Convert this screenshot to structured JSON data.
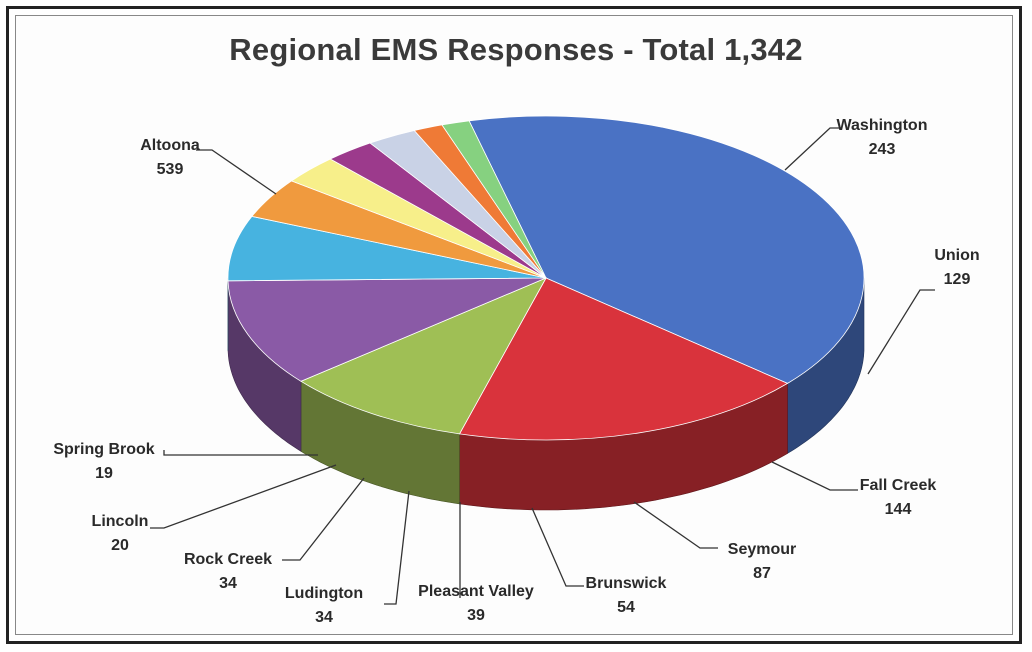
{
  "chart_data": {
    "type": "pie",
    "title": "Regional EMS Responses - Total 1,342",
    "style": "3d",
    "slices": [
      {
        "label": "Altoona",
        "value": 539,
        "color": "#4a72c4"
      },
      {
        "label": "Washington",
        "value": 243,
        "color": "#d9333c"
      },
      {
        "label": "Union",
        "value": 129,
        "color": "#9fbf55"
      },
      {
        "label": "Fall Creek",
        "value": 144,
        "color": "#8a5aa6"
      },
      {
        "label": "Seymour",
        "value": 87,
        "color": "#47b3e0"
      },
      {
        "label": "Brunswick",
        "value": 54,
        "color": "#f09a3e"
      },
      {
        "label": "Pleasant Valley",
        "value": 39,
        "color": "#f7ef8a"
      },
      {
        "label": "Ludington",
        "value": 34,
        "color": "#9c3a8c"
      },
      {
        "label": "Rock Creek",
        "value": 34,
        "color": "#c9d2e6"
      },
      {
        "label": "Lincoln",
        "value": 20,
        "color": "#ef7a36"
      },
      {
        "label": "Spring Brook",
        "value": 19,
        "color": "#86d180"
      }
    ]
  }
}
